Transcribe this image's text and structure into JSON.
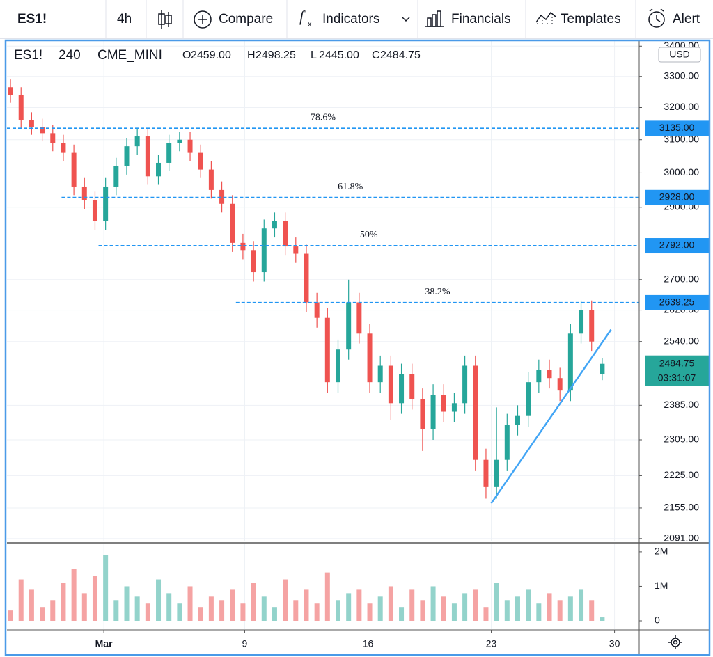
{
  "toolbar": {
    "symbol": "ES1!",
    "interval": "4h",
    "buttons": [
      "Compare",
      "Indicators",
      "Financials",
      "Templates",
      "Alert"
    ]
  },
  "chart_data": {
    "type": "candlestick",
    "symbol": "ES1!",
    "interval": "240",
    "exchange": "CME_MINI",
    "currency": "USD",
    "ohlc": [
      {
        "key": "O",
        "value": {
          "value": 2459,
          "label": "2459.00"
        }
      },
      {
        "key": "H",
        "value": {
          "value": 2498.25,
          "label": "2498.25"
        }
      },
      {
        "key": "L",
        "value": {
          "value": 2445,
          "label": "2445.00"
        }
      },
      {
        "key": "C",
        "value": {
          "value": 2484.75,
          "label": "2484.75"
        }
      }
    ],
    "log_scale": true,
    "grid": true,
    "up_color": "#26a69a",
    "down_color": "#ef5350",
    "volume_up_color": "#93d3cb",
    "volume_down_color": "#f5a3a3",
    "xlim": [
      -4.5,
      31.4
    ],
    "xticks": [
      {
        "value": 1,
        "label": "Mar"
      },
      9,
      16,
      23,
      30
    ],
    "ylim": [
      2085,
      3410
    ],
    "yticks": [
      {
        "value": 3400,
        "label": "3400.00"
      },
      {
        "value": 3300,
        "label": "3300.00"
      },
      {
        "value": 3200,
        "label": "3200.00"
      },
      {
        "value": 3100,
        "label": "3100.00"
      },
      {
        "value": 3000,
        "label": "3000.00"
      },
      {
        "value": 2900,
        "label": "2900.00"
      },
      {
        "value": 2700,
        "label": "2700.00"
      },
      {
        "value": 2620,
        "label": "2620.00"
      },
      {
        "value": 2540,
        "label": "2540.00"
      },
      {
        "value": 2385,
        "label": "2385.00"
      },
      {
        "value": 2305,
        "label": "2305.00"
      },
      {
        "value": 2225,
        "label": "2225.00"
      },
      {
        "value": 2155,
        "label": "2155.00"
      },
      {
        "value": 2091,
        "label": "2091.00"
      }
    ],
    "volume_ylim": [
      0,
      2220000
    ],
    "volume_ticks": [
      {
        "value": 2000000,
        "label": "2M"
      },
      {
        "value": 1000000,
        "label": "1M"
      },
      0
    ],
    "x": [
      -4.3,
      -3.7,
      -3.1,
      -2.5,
      -1.9,
      -1.3,
      -0.7,
      -0.1,
      0.5,
      1.1,
      1.7,
      2.3,
      2.9,
      3.5,
      4.1,
      4.7,
      5.3,
      5.9,
      6.5,
      7.1,
      7.7,
      8.3,
      8.9,
      9.5,
      10.1,
      10.7,
      11.3,
      11.9,
      12.5,
      13.1,
      13.7,
      14.3,
      14.9,
      15.5,
      16.1,
      16.7,
      17.3,
      17.9,
      18.5,
      19.1,
      19.7,
      20.3,
      20.9,
      21.5,
      22.1,
      22.7,
      23.3,
      23.9,
      24.5,
      25.1,
      25.7,
      26.3,
      26.9,
      27.5,
      28.1,
      28.7,
      29.3
    ],
    "open": [
      3265,
      3240,
      3160,
      3140,
      3120,
      3090,
      3060,
      2960,
      2920,
      2860,
      2960,
      3020,
      3080,
      3110,
      2990,
      3030,
      3090,
      3100,
      3060,
      3010,
      2950,
      2910,
      2800,
      2780,
      2720,
      2840,
      2860,
      2790,
      2770,
      2640,
      2600,
      2440,
      2520,
      2640,
      2560,
      2440,
      2480,
      2390,
      2460,
      2400,
      2330,
      2410,
      2370,
      2390,
      2480,
      2260,
      2200,
      2260,
      2340,
      2360,
      2440,
      2470,
      2450,
      2420,
      2560,
      2620,
      2459
    ],
    "high": [
      3290,
      3265,
      3185,
      3165,
      3145,
      3115,
      3085,
      2985,
      2945,
      2985,
      3045,
      3105,
      3135,
      3135,
      3055,
      3115,
      3125,
      3125,
      3085,
      3035,
      2975,
      2935,
      2825,
      2805,
      2865,
      2885,
      2885,
      2815,
      2795,
      2665,
      2625,
      2545,
      2700,
      2665,
      2585,
      2505,
      2505,
      2485,
      2485,
      2425,
      2435,
      2435,
      2415,
      2505,
      2505,
      2285,
      2380,
      2365,
      2385,
      2465,
      2495,
      2495,
      2475,
      2585,
      2645,
      2645,
      2498.25
    ],
    "low": [
      3215,
      3135,
      3115,
      3095,
      3065,
      3035,
      2935,
      2895,
      2835,
      2835,
      2935,
      2995,
      3055,
      2965,
      2965,
      3005,
      3065,
      3035,
      2985,
      2925,
      2885,
      2775,
      2755,
      2695,
      2695,
      2815,
      2765,
      2745,
      2615,
      2575,
      2415,
      2415,
      2495,
      2535,
      2415,
      2415,
      2350,
      2365,
      2375,
      2280,
      2305,
      2345,
      2345,
      2365,
      2235,
      2175,
      2175,
      2235,
      2315,
      2335,
      2415,
      2425,
      2395,
      2395,
      2535,
      2515,
      2445
    ],
    "close": [
      3240,
      3160,
      3140,
      3120,
      3090,
      3060,
      2960,
      2920,
      2860,
      2960,
      3020,
      3080,
      3110,
      2990,
      3030,
      3090,
      3100,
      3060,
      3010,
      2950,
      2910,
      2800,
      2780,
      2720,
      2840,
      2860,
      2790,
      2770,
      2640,
      2600,
      2440,
      2520,
      2640,
      2560,
      2440,
      2480,
      2390,
      2460,
      2400,
      2330,
      2410,
      2370,
      2390,
      2480,
      2260,
      2200,
      2260,
      2340,
      2360,
      2440,
      2470,
      2450,
      2420,
      2560,
      2620,
      2540,
      2484.75
    ],
    "volume": [
      300000,
      1200000,
      900000,
      400000,
      600000,
      1100000,
      1500000,
      800000,
      1300000,
      1900000,
      600000,
      1000000,
      700000,
      500000,
      1200000,
      800000,
      500000,
      1000000,
      400000,
      700000,
      600000,
      900000,
      500000,
      1100000,
      700000,
      400000,
      1200000,
      600000,
      900000,
      500000,
      1400000,
      600000,
      800000,
      900000,
      500000,
      700000,
      1000000,
      400000,
      900000,
      600000,
      1000000,
      700000,
      500000,
      800000,
      900000,
      400000,
      1100000,
      600000,
      700000,
      900000,
      500000,
      800000,
      600000,
      700000,
      900000,
      600000,
      100000
    ],
    "fib_levels": [
      {
        "ratio": "78.6%",
        "from": -4.5,
        "price": {
          "value": 3135,
          "label": "3135.00"
        }
      },
      {
        "ratio": "61.8%",
        "from": -1.4,
        "price": {
          "value": 2928,
          "label": "2928.00"
        }
      },
      {
        "ratio": "50%",
        "from": 0.7,
        "price": {
          "value": 2792,
          "label": "2792.00"
        }
      },
      {
        "ratio": "38.2%",
        "from": 8.5,
        "price": {
          "value": 2639.25,
          "label": "2639.25"
        }
      }
    ],
    "fib_color": "#2196f3",
    "trendline": {
      "x": [
        23,
        29.8
      ],
      "y": [
        2165,
        2570
      ],
      "color": "#42a5f5"
    },
    "last_price": {
      "value": 2484.75,
      "label": "2484.75"
    },
    "countdown": "03:31:07"
  }
}
